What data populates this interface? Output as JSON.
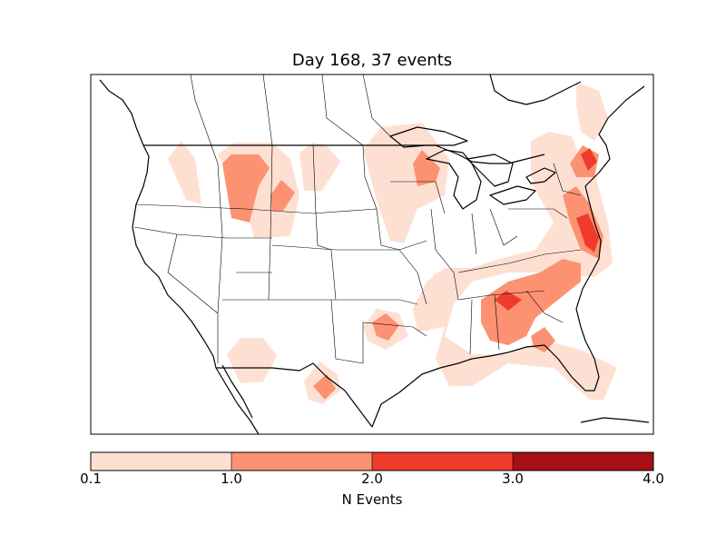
{
  "figure": {
    "title": "Day 168, 37 events"
  },
  "colorbar": {
    "label": "N Events",
    "ticks": [
      "0.1",
      "1.0",
      "2.0",
      "3.0",
      "4.0"
    ],
    "bins": [
      {
        "range": [
          0.1,
          1.0
        ],
        "color": "#fee0d2"
      },
      {
        "range": [
          1.0,
          2.0
        ],
        "color": "#fc9272"
      },
      {
        "range": [
          2.0,
          3.0
        ],
        "color": "#ef3b2c"
      },
      {
        "range": [
          3.0,
          4.0
        ],
        "color": "#a50f15"
      }
    ]
  },
  "map": {
    "region": "Contiguous United States",
    "projection": "lambert-conformal",
    "features": [
      "coastlines",
      "country-borders",
      "state-borders"
    ]
  }
}
